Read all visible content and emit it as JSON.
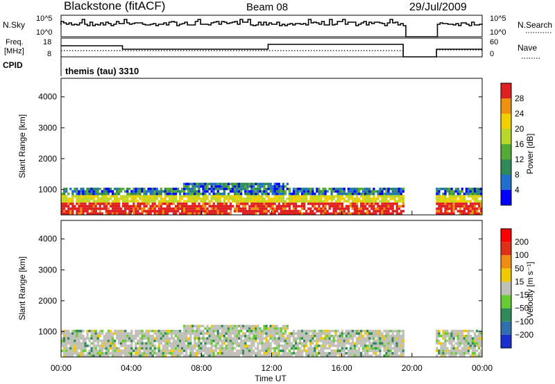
{
  "header": {
    "station": "Blackstone (fitACF)",
    "beam": "Beam 08",
    "date": "29/Jul/2009"
  },
  "top_panels": {
    "nsky_label": "N.Sky",
    "nsky_ticks": [
      "10^5",
      "10^0"
    ],
    "nsearch_label": "N.Search",
    "freq_label_1": "Freq.",
    "freq_label_2": "[MHz]",
    "freq_ticks": [
      "18",
      "8"
    ],
    "nave_label": "Nave",
    "nave_ticks": [
      "60",
      "0"
    ],
    "cpid_label": "CPID",
    "cpid_value": "themis (tau) 3310"
  },
  "x_axis": {
    "ticks": [
      "00:00",
      "04:00",
      "08:00",
      "12:00",
      "16:00",
      "20:00",
      "00:00"
    ],
    "label": "Time UT"
  },
  "chart_data": [
    {
      "type": "heatmap",
      "panel": "power",
      "ylabel": "Slant Range [km]",
      "yticks": [
        1000,
        2000,
        3000,
        4000
      ],
      "ylim": [
        180,
        4600
      ],
      "xlim_hours": [
        0,
        24
      ],
      "colorbar": {
        "label": "Power [dB]",
        "ticks": [
          "4",
          "8",
          "12",
          "16",
          "20",
          "24",
          "28"
        ],
        "colors": [
          "#0000ff",
          "#1f6fcf",
          "#2e8b57",
          "#55aa33",
          "#b9d82a",
          "#f2d000",
          "#f09010",
          "#e02020"
        ]
      },
      "data_gap_hours": [
        19.5,
        21.4
      ]
    },
    {
      "type": "heatmap",
      "panel": "velocity",
      "ylabel": "Slant Range [km]",
      "yticks": [
        1000,
        2000,
        3000,
        4000
      ],
      "ylim": [
        180,
        4600
      ],
      "xlim_hours": [
        0,
        24
      ],
      "colorbar": {
        "label": "Velocity [m s⁻¹]",
        "ticks": [
          "200",
          "100",
          "50",
          "15",
          "-15",
          "-50",
          "-100",
          "-200"
        ],
        "colors": [
          "#1a2fcf",
          "#2f6fb0",
          "#2e8b57",
          "#66cc33",
          "#c0c0b8",
          "#f2c800",
          "#f08c10",
          "#e03018",
          "#ff0000"
        ]
      },
      "data_gap_hours": [
        19.5,
        21.4
      ]
    }
  ]
}
